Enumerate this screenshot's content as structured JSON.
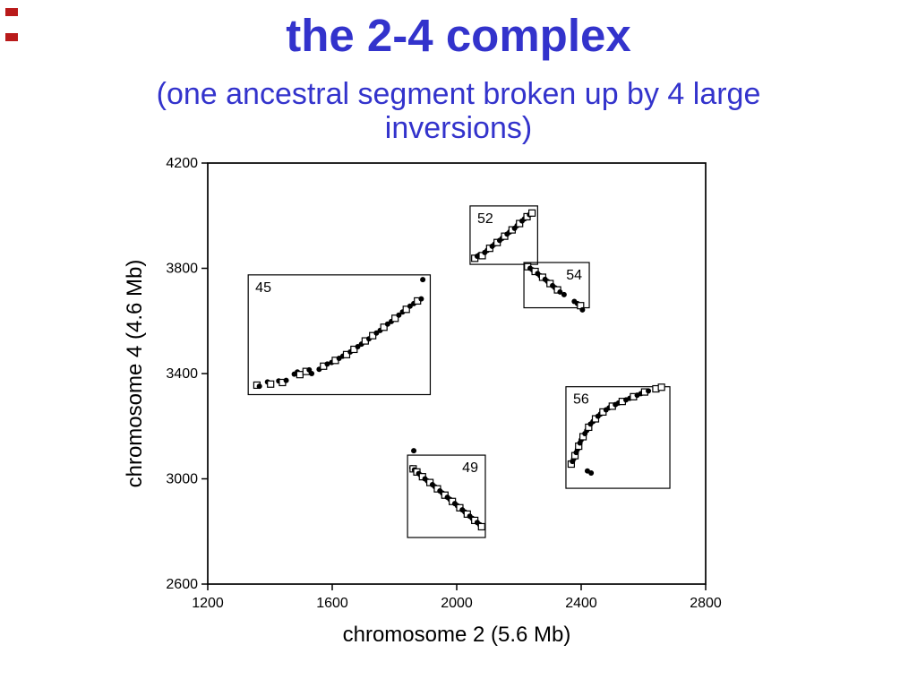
{
  "slide": {
    "title": "the 2-4 complex",
    "subtitle_lines": [
      "(one ancestral segment broken up by 4 large",
      "inversions)"
    ],
    "accent_color": "#3333cc",
    "corner_mark_color": "#b91a1a"
  },
  "chart_data": {
    "type": "scatter",
    "title": "",
    "xlabel": "chromosome 2 (5.6 Mb)",
    "ylabel": "chromosome 4 (4.6 Mb)",
    "xlim": [
      1200,
      2800
    ],
    "ylim": [
      2600,
      4200
    ],
    "xticks": [
      1200,
      1600,
      2000,
      2400,
      2800
    ],
    "yticks": [
      2600,
      3000,
      3400,
      3800,
      4200
    ],
    "grid": false,
    "legend": "none",
    "marker_types": {
      "c": "filled black circle",
      "s": "open black square"
    },
    "point_format": [
      "x",
      "y",
      "marker"
    ],
    "clusters": [
      {
        "label": "45",
        "label_pos": "top-left",
        "box": {
          "x": [
            1330,
            1915
          ],
          "y": [
            3320,
            3775
          ]
        },
        "points": [
          [
            1358,
            3356,
            "s"
          ],
          [
            1366,
            3352,
            "c"
          ],
          [
            1392,
            3368,
            "c"
          ],
          [
            1402,
            3360,
            "s"
          ],
          [
            1428,
            3372,
            "c"
          ],
          [
            1440,
            3366,
            "s"
          ],
          [
            1452,
            3374,
            "c"
          ],
          [
            1478,
            3398,
            "c"
          ],
          [
            1488,
            3406,
            "c"
          ],
          [
            1496,
            3396,
            "s"
          ],
          [
            1516,
            3408,
            "s"
          ],
          [
            1526,
            3414,
            "c"
          ],
          [
            1534,
            3400,
            "c"
          ],
          [
            1558,
            3416,
            "c"
          ],
          [
            1572,
            3428,
            "s"
          ],
          [
            1584,
            3436,
            "c"
          ],
          [
            1598,
            3442,
            "c"
          ],
          [
            1610,
            3450,
            "s"
          ],
          [
            1622,
            3458,
            "c"
          ],
          [
            1634,
            3466,
            "c"
          ],
          [
            1646,
            3472,
            "s"
          ],
          [
            1658,
            3482,
            "c"
          ],
          [
            1670,
            3492,
            "s"
          ],
          [
            1682,
            3502,
            "c"
          ],
          [
            1694,
            3512,
            "c"
          ],
          [
            1706,
            3524,
            "s"
          ],
          [
            1718,
            3532,
            "c"
          ],
          [
            1730,
            3544,
            "s"
          ],
          [
            1742,
            3554,
            "c"
          ],
          [
            1754,
            3564,
            "c"
          ],
          [
            1766,
            3576,
            "s"
          ],
          [
            1778,
            3588,
            "c"
          ],
          [
            1790,
            3598,
            "c"
          ],
          [
            1802,
            3610,
            "s"
          ],
          [
            1814,
            3622,
            "c"
          ],
          [
            1826,
            3634,
            "c"
          ],
          [
            1838,
            3644,
            "s"
          ],
          [
            1850,
            3656,
            "c"
          ],
          [
            1862,
            3666,
            "c"
          ],
          [
            1874,
            3676,
            "s"
          ],
          [
            1886,
            3684,
            "c"
          ],
          [
            1891,
            3757,
            "c"
          ]
        ]
      },
      {
        "label": "52",
        "label_pos": "top-left",
        "box": {
          "x": [
            2043,
            2260
          ],
          "y": [
            3815,
            4037
          ]
        },
        "points": [
          [
            2058,
            3838,
            "s"
          ],
          [
            2066,
            3846,
            "c"
          ],
          [
            2074,
            3852,
            "c"
          ],
          [
            2082,
            3848,
            "s"
          ],
          [
            2090,
            3860,
            "c"
          ],
          [
            2098,
            3868,
            "c"
          ],
          [
            2106,
            3876,
            "s"
          ],
          [
            2114,
            3884,
            "c"
          ],
          [
            2122,
            3892,
            "c"
          ],
          [
            2130,
            3898,
            "s"
          ],
          [
            2138,
            3906,
            "c"
          ],
          [
            2146,
            3914,
            "c"
          ],
          [
            2154,
            3922,
            "s"
          ],
          [
            2162,
            3930,
            "c"
          ],
          [
            2170,
            3938,
            "c"
          ],
          [
            2178,
            3946,
            "s"
          ],
          [
            2186,
            3952,
            "c"
          ],
          [
            2194,
            3962,
            "c"
          ],
          [
            2202,
            3970,
            "s"
          ],
          [
            2210,
            3980,
            "c"
          ],
          [
            2218,
            3988,
            "c"
          ],
          [
            2226,
            3996,
            "s"
          ],
          [
            2234,
            4004,
            "c"
          ],
          [
            2242,
            4010,
            "s"
          ]
        ]
      },
      {
        "label": "54",
        "label_pos": "top-right",
        "box": {
          "x": [
            2216,
            2426
          ],
          "y": [
            3650,
            3822
          ]
        },
        "points": [
          [
            2228,
            3806,
            "s"
          ],
          [
            2236,
            3800,
            "c"
          ],
          [
            2244,
            3794,
            "c"
          ],
          [
            2252,
            3788,
            "s"
          ],
          [
            2260,
            3780,
            "c"
          ],
          [
            2268,
            3772,
            "c"
          ],
          [
            2276,
            3766,
            "s"
          ],
          [
            2284,
            3758,
            "c"
          ],
          [
            2292,
            3750,
            "c"
          ],
          [
            2300,
            3742,
            "s"
          ],
          [
            2308,
            3734,
            "c"
          ],
          [
            2316,
            3726,
            "c"
          ],
          [
            2324,
            3718,
            "s"
          ],
          [
            2332,
            3710,
            "c"
          ],
          [
            2345,
            3700,
            "c"
          ],
          [
            2378,
            3674,
            "c"
          ],
          [
            2388,
            3666,
            "c"
          ],
          [
            2398,
            3658,
            "s"
          ],
          [
            2404,
            3642,
            "c"
          ]
        ]
      },
      {
        "label": "49",
        "label_pos": "top-right",
        "box": {
          "x": [
            1842,
            2092
          ],
          "y": [
            2777,
            3090
          ]
        },
        "points": [
          [
            1862,
            3107,
            "c"
          ],
          [
            1856,
            3042,
            "c"
          ],
          [
            1860,
            3038,
            "s"
          ],
          [
            1864,
            3034,
            "c"
          ],
          [
            1868,
            3030,
            "c"
          ],
          [
            1872,
            3026,
            "s"
          ],
          [
            1878,
            3020,
            "c"
          ],
          [
            1884,
            3014,
            "c"
          ],
          [
            1890,
            3008,
            "s"
          ],
          [
            1898,
            3000,
            "c"
          ],
          [
            1906,
            2992,
            "c"
          ],
          [
            1914,
            2986,
            "s"
          ],
          [
            1922,
            2978,
            "c"
          ],
          [
            1930,
            2970,
            "c"
          ],
          [
            1938,
            2962,
            "s"
          ],
          [
            1946,
            2954,
            "c"
          ],
          [
            1954,
            2946,
            "c"
          ],
          [
            1962,
            2938,
            "s"
          ],
          [
            1970,
            2930,
            "c"
          ],
          [
            1978,
            2922,
            "c"
          ],
          [
            1986,
            2914,
            "s"
          ],
          [
            1994,
            2906,
            "c"
          ],
          [
            2002,
            2898,
            "c"
          ],
          [
            2010,
            2890,
            "s"
          ],
          [
            2018,
            2882,
            "c"
          ],
          [
            2026,
            2874,
            "c"
          ],
          [
            2034,
            2866,
            "s"
          ],
          [
            2042,
            2858,
            "c"
          ],
          [
            2050,
            2850,
            "c"
          ],
          [
            2058,
            2842,
            "s"
          ],
          [
            2066,
            2834,
            "c"
          ],
          [
            2074,
            2826,
            "c"
          ],
          [
            2080,
            2818,
            "s"
          ]
        ]
      },
      {
        "label": "56",
        "label_pos": "top-left",
        "box": {
          "x": [
            2351,
            2685
          ],
          "y": [
            2964,
            3350
          ]
        },
        "points": [
          [
            2368,
            3056,
            "s"
          ],
          [
            2372,
            3066,
            "c"
          ],
          [
            2376,
            3076,
            "c"
          ],
          [
            2380,
            3088,
            "s"
          ],
          [
            2384,
            3100,
            "c"
          ],
          [
            2388,
            3112,
            "c"
          ],
          [
            2392,
            3124,
            "s"
          ],
          [
            2396,
            3136,
            "c"
          ],
          [
            2400,
            3148,
            "c"
          ],
          [
            2406,
            3160,
            "s"
          ],
          [
            2412,
            3172,
            "c"
          ],
          [
            2418,
            3184,
            "c"
          ],
          [
            2424,
            3196,
            "s"
          ],
          [
            2430,
            3208,
            "c"
          ],
          [
            2438,
            3218,
            "c"
          ],
          [
            2446,
            3228,
            "s"
          ],
          [
            2454,
            3238,
            "c"
          ],
          [
            2462,
            3246,
            "c"
          ],
          [
            2470,
            3254,
            "s"
          ],
          [
            2480,
            3262,
            "c"
          ],
          [
            2490,
            3270,
            "c"
          ],
          [
            2500,
            3276,
            "s"
          ],
          [
            2510,
            3282,
            "c"
          ],
          [
            2520,
            3288,
            "c"
          ],
          [
            2532,
            3294,
            "s"
          ],
          [
            2544,
            3300,
            "c"
          ],
          [
            2556,
            3306,
            "c"
          ],
          [
            2568,
            3312,
            "s"
          ],
          [
            2580,
            3318,
            "c"
          ],
          [
            2592,
            3324,
            "c"
          ],
          [
            2604,
            3330,
            "s"
          ],
          [
            2616,
            3334,
            "c"
          ],
          [
            2640,
            3342,
            "s"
          ],
          [
            2658,
            3348,
            "s"
          ],
          [
            2420,
            3030,
            "c"
          ],
          [
            2432,
            3022,
            "c"
          ]
        ]
      }
    ]
  }
}
